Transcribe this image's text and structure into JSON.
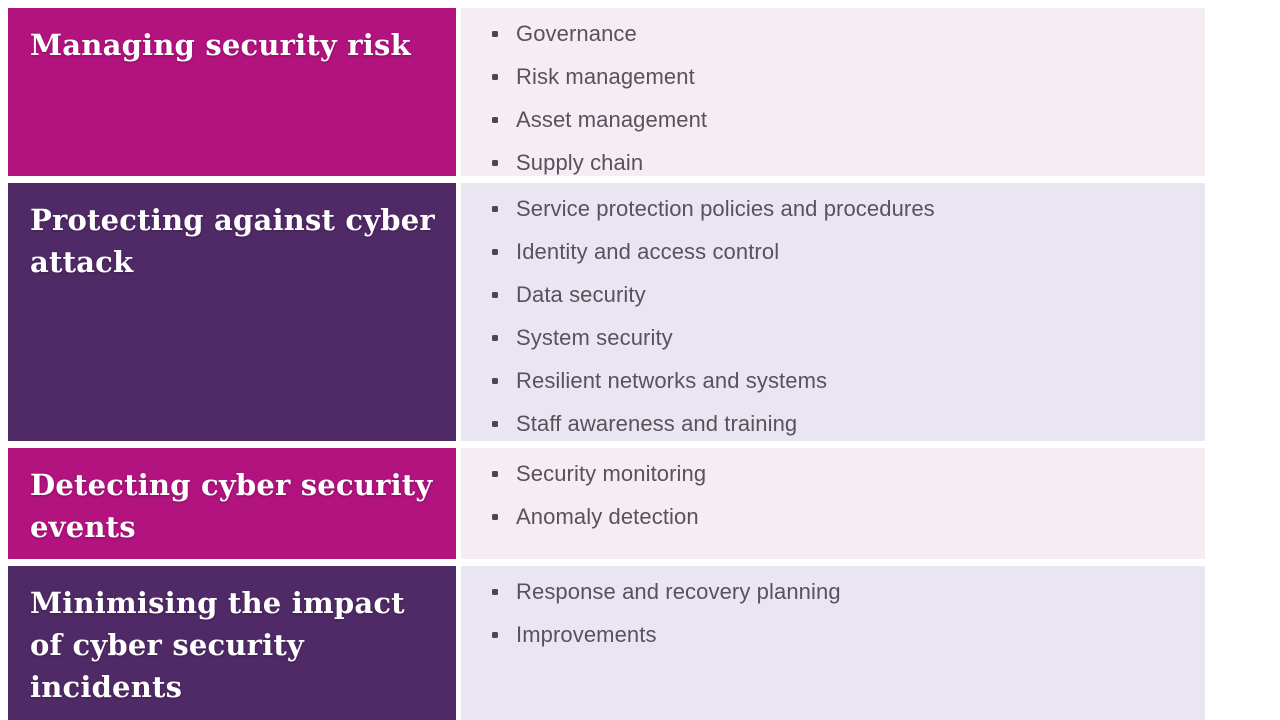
{
  "table": {
    "rows": [
      {
        "category": "Managing security risk",
        "theme": "magenta",
        "items": [
          "Governance",
          "Risk management",
          "Asset management",
          "Supply chain"
        ]
      },
      {
        "category": "Protecting against cyber attack",
        "theme": "purple",
        "items": [
          "Service protection policies and procedures",
          "Identity and access control",
          "Data security",
          "System security",
          "Resilient networks and systems",
          "Staff awareness and training"
        ]
      },
      {
        "category": "Detecting cyber security events",
        "theme": "magenta",
        "items": [
          "Security monitoring",
          "Anomaly detection"
        ]
      },
      {
        "category": "Minimising the impact of cyber security incidents",
        "theme": "purple",
        "items": [
          "Response and recovery planning",
          "Improvements"
        ]
      }
    ],
    "colors": {
      "magenta": "#B2137E",
      "purple": "#4F2A66",
      "magenta_light": "#F6ECF4",
      "purple_light": "#E9E6F1",
      "heading_text": "#FFFFFF",
      "item_text": "#57525C",
      "bullet": "#4D474D"
    }
  }
}
